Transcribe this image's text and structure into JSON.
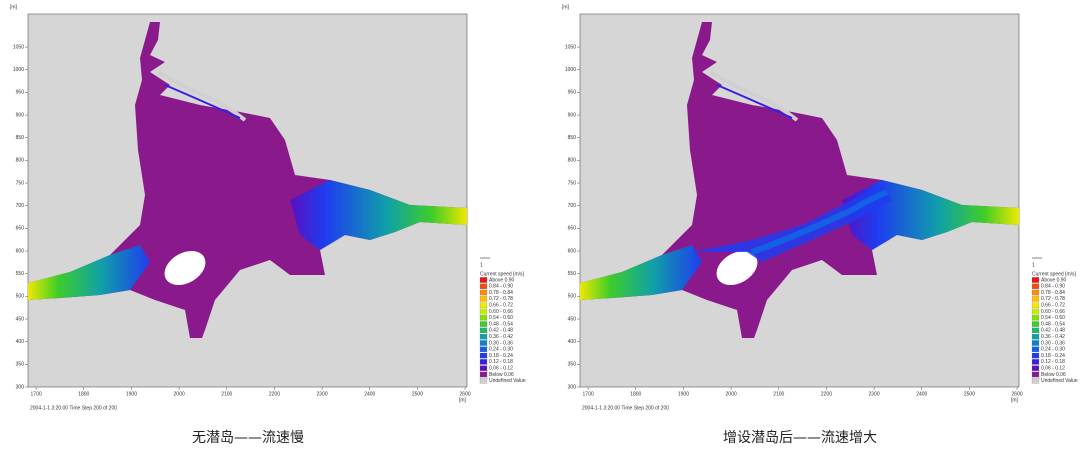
{
  "panels": [
    {
      "caption": "无潜岛——流速慢",
      "time_label": "2004-1-1 3:20:00  Time Step 200 of 200"
    },
    {
      "caption": "增设潜岛后——流速增大",
      "time_label": "2004-1-1 3:20:00  Time Step 200 of 200"
    }
  ],
  "axis_unit": "[m]",
  "xlim": [
    1683,
    2604
  ],
  "ylim": [
    300,
    1123
  ],
  "x_ticks": [
    1700,
    1800,
    1900,
    2000,
    2100,
    2200,
    2300,
    2400,
    2500,
    2600
  ],
  "y_ticks": [
    300,
    350,
    400,
    450,
    500,
    550,
    600,
    650,
    700,
    750,
    800,
    850,
    900,
    950,
    1000,
    1050
  ],
  "vector_scale_label": "1",
  "legend": {
    "title": "Current speed [m/s]",
    "items": [
      {
        "label": "Above 0.90",
        "color": "#e8161a"
      },
      {
        "label": "0.84 - 0.90",
        "color": "#f04e0c"
      },
      {
        "label": "0.78 - 0.84",
        "color": "#f98c0a"
      },
      {
        "label": "0.72 - 0.78",
        "color": "#ffc000"
      },
      {
        "label": "0.66 - 0.72",
        "color": "#f0e800"
      },
      {
        "label": "0.60 - 0.66",
        "color": "#c2ee00"
      },
      {
        "label": "0.54 - 0.60",
        "color": "#86e000"
      },
      {
        "label": "0.48 - 0.54",
        "color": "#3ccd2a"
      },
      {
        "label": "0.42 - 0.48",
        "color": "#21b870"
      },
      {
        "label": "0.36 - 0.42",
        "color": "#10a0a8"
      },
      {
        "label": "0.30 - 0.36",
        "color": "#0b84d0"
      },
      {
        "label": "0.24 - 0.30",
        "color": "#1460e6"
      },
      {
        "label": "0.18 - 0.24",
        "color": "#1e3cf0"
      },
      {
        "label": "0.12 - 0.18",
        "color": "#3a1ee0"
      },
      {
        "label": "0.06 - 0.12",
        "color": "#5a10c0"
      },
      {
        "label": "Below 0.06",
        "color": "#8a1a8c"
      },
      {
        "label": "Undefined Value",
        "color": "#d0d0d0"
      }
    ]
  }
}
